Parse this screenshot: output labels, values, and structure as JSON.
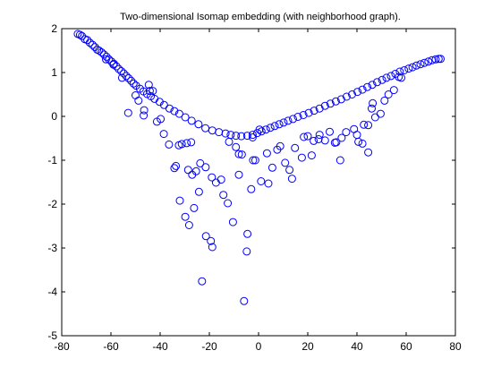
{
  "chart_data": {
    "type": "scatter",
    "title": "Two-dimensional Isomap embedding (with neighborhood graph).",
    "xlabel": "",
    "ylabel": "",
    "xlim": [
      -80,
      80
    ],
    "ylim": [
      -5,
      2
    ],
    "xticks": [
      -80,
      -60,
      -40,
      -20,
      0,
      20,
      40,
      60,
      80
    ],
    "yticks": [
      -5,
      -4,
      -3,
      -2,
      -1,
      0,
      1,
      2
    ],
    "xtick_labels": [
      "-80",
      "-60",
      "-40",
      "-20",
      "0",
      "20",
      "40",
      "60",
      "80"
    ],
    "ytick_labels": [
      "-5",
      "-4",
      "-3",
      "-2",
      "-1",
      "0",
      "1",
      "2"
    ],
    "grid": false,
    "marker": "circle-open",
    "marker_color": "#0000ff",
    "series": [
      {
        "points": [
          [
            -73.5,
            1.88
          ],
          [
            -72.6,
            1.86
          ],
          [
            -71.8,
            1.83
          ],
          [
            -70.6,
            1.76
          ],
          [
            -69.6,
            1.74
          ],
          [
            -68.6,
            1.68
          ],
          [
            -67.5,
            1.63
          ],
          [
            -66.5,
            1.58
          ],
          [
            -65.6,
            1.52
          ],
          [
            -64.8,
            1.5
          ],
          [
            -63.8,
            1.46
          ],
          [
            -62.8,
            1.41
          ],
          [
            -61.8,
            1.36
          ],
          [
            -60.8,
            1.3
          ],
          [
            -59.8,
            1.25
          ],
          [
            -58.8,
            1.2
          ],
          [
            -57.8,
            1.14
          ],
          [
            -56.8,
            1.08
          ],
          [
            -55.8,
            1.03
          ],
          [
            -54.8,
            0.98
          ],
          [
            -53.8,
            0.92
          ],
          [
            -52.8,
            0.87
          ],
          [
            -51.8,
            0.81
          ],
          [
            -50.8,
            0.75
          ],
          [
            -49.8,
            0.7
          ],
          [
            -48.2,
            0.63
          ],
          [
            -46.8,
            0.57
          ],
          [
            -45.3,
            0.51
          ],
          [
            -43.8,
            0.46
          ],
          [
            -42.3,
            0.4
          ],
          [
            -40.2,
            0.33
          ],
          [
            -38.4,
            0.26
          ],
          [
            -36.2,
            0.18
          ],
          [
            -34.2,
            0.12
          ],
          [
            -32.2,
            0.06
          ],
          [
            -29.8,
            -0.02
          ],
          [
            -27.2,
            -0.1
          ],
          [
            -24.4,
            -0.18
          ],
          [
            -21.6,
            -0.27
          ],
          [
            -18.8,
            -0.32
          ],
          [
            -16.1,
            -0.36
          ],
          [
            -13.4,
            -0.39
          ],
          [
            -11.3,
            -0.42
          ],
          [
            -9.2,
            -0.44
          ],
          [
            -7.0,
            -0.45
          ],
          [
            -4.6,
            -0.44
          ],
          [
            -2.4,
            -0.42
          ],
          [
            -0.5,
            -0.38
          ],
          [
            1.2,
            -0.34
          ],
          [
            3.0,
            -0.3
          ],
          [
            4.8,
            -0.26
          ],
          [
            6.6,
            -0.22
          ],
          [
            8.4,
            -0.18
          ],
          [
            10.2,
            -0.14
          ],
          [
            12.0,
            -0.1
          ],
          [
            14.0,
            -0.06
          ],
          [
            16.0,
            -0.01
          ],
          [
            18.2,
            0.03
          ],
          [
            20.4,
            0.08
          ],
          [
            22.6,
            0.13
          ],
          [
            24.8,
            0.18
          ],
          [
            27.0,
            0.24
          ],
          [
            29.2,
            0.29
          ],
          [
            31.4,
            0.34
          ],
          [
            33.6,
            0.39
          ],
          [
            35.8,
            0.45
          ],
          [
            38.0,
            0.5
          ],
          [
            40.2,
            0.56
          ],
          [
            42.2,
            0.61
          ],
          [
            44.2,
            0.67
          ],
          [
            46.2,
            0.72
          ],
          [
            48.2,
            0.78
          ],
          [
            50.2,
            0.83
          ],
          [
            52.0,
            0.88
          ],
          [
            53.8,
            0.92
          ],
          [
            55.6,
            0.97
          ],
          [
            57.4,
            1.02
          ],
          [
            59.2,
            1.05
          ],
          [
            61.0,
            1.09
          ],
          [
            62.6,
            1.12
          ],
          [
            64.2,
            1.16
          ],
          [
            65.8,
            1.19
          ],
          [
            67.4,
            1.22
          ],
          [
            69.0,
            1.25
          ],
          [
            70.5,
            1.28
          ],
          [
            72.0,
            1.3
          ],
          [
            73.2,
            1.31
          ],
          [
            74.0,
            1.31
          ],
          [
            -62.0,
            1.3
          ],
          [
            -59.0,
            1.18
          ],
          [
            -55.5,
            0.88
          ],
          [
            -50.0,
            0.48
          ],
          [
            -48.8,
            0.36
          ],
          [
            -46.5,
            0.14
          ],
          [
            -44.6,
            0.72
          ],
          [
            -43.0,
            0.58
          ],
          [
            -41.3,
            -0.12
          ],
          [
            -39.8,
            -0.06
          ],
          [
            -36.4,
            -0.64
          ],
          [
            -33.6,
            -1.13
          ],
          [
            -31.2,
            -0.63
          ],
          [
            -27.4,
            -0.59
          ],
          [
            -25.4,
            -1.25
          ],
          [
            -23.7,
            -1.07
          ],
          [
            -21.5,
            -1.16
          ],
          [
            -19.0,
            -1.39
          ],
          [
            -17.3,
            -1.51
          ],
          [
            -15.2,
            -1.44
          ],
          [
            -12.0,
            -0.58
          ],
          [
            -9.2,
            -0.7
          ],
          [
            -6.8,
            -0.87
          ],
          [
            -4.5,
            -2.68
          ],
          [
            -3.0,
            -1.66
          ],
          [
            -1.3,
            -1.0
          ],
          [
            1.0,
            -1.48
          ],
          [
            3.4,
            -0.84
          ],
          [
            5.6,
            -1.17
          ],
          [
            7.6,
            -0.76
          ],
          [
            10.8,
            -1.06
          ],
          [
            12.6,
            -1.22
          ],
          [
            14.8,
            -0.72
          ],
          [
            17.6,
            -0.94
          ],
          [
            20.0,
            -0.45
          ],
          [
            22.4,
            -0.56
          ],
          [
            24.8,
            -0.42
          ],
          [
            27.0,
            -0.55
          ],
          [
            28.9,
            -0.35
          ],
          [
            31.6,
            -0.59
          ],
          [
            33.8,
            -0.49
          ],
          [
            35.6,
            -0.36
          ],
          [
            38.8,
            -0.29
          ],
          [
            40.6,
            -0.58
          ],
          [
            42.8,
            -0.19
          ],
          [
            44.6,
            -0.2
          ],
          [
            47.4,
            -0.02
          ],
          [
            49.6,
            0.06
          ],
          [
            51.2,
            0.36
          ],
          [
            52.8,
            0.5
          ],
          [
            55.0,
            0.6
          ],
          [
            58.0,
            0.88
          ],
          [
            -53.0,
            0.08
          ],
          [
            -46.7,
            0.02
          ],
          [
            -44.2,
            0.58
          ],
          [
            -38.5,
            -0.4
          ],
          [
            -34.2,
            -1.18
          ],
          [
            -32.0,
            -1.92
          ],
          [
            -28.6,
            -1.22
          ],
          [
            -27.0,
            -1.33
          ],
          [
            -24.2,
            -1.72
          ],
          [
            -23.0,
            -3.76
          ],
          [
            -21.4,
            -2.73
          ],
          [
            -19.4,
            -2.84
          ],
          [
            -18.8,
            -2.98
          ],
          [
            -14.3,
            -1.79
          ],
          [
            -12.5,
            -1.98
          ],
          [
            -10.4,
            -2.41
          ],
          [
            -8.0,
            -1.33
          ],
          [
            -5.9,
            -4.21
          ],
          [
            -4.8,
            -3.08
          ],
          [
            -2.2,
            -1.0
          ],
          [
            4.0,
            -1.53
          ],
          [
            8.8,
            -0.68
          ],
          [
            13.6,
            -1.42
          ],
          [
            21.6,
            -0.89
          ],
          [
            33.2,
            -1.0
          ],
          [
            42.2,
            -0.62
          ],
          [
            44.6,
            -0.82
          ],
          [
            46.4,
            0.3
          ],
          [
            -29.8,
            -2.29
          ],
          [
            -28.2,
            -2.48
          ],
          [
            -26.2,
            -2.09
          ],
          [
            -32.4,
            -0.66
          ],
          [
            -29.2,
            -0.61
          ],
          [
            -8.0,
            -0.86
          ],
          [
            -2.4,
            -0.48
          ],
          [
            0.4,
            -0.3
          ],
          [
            18.4,
            -0.47
          ],
          [
            24.4,
            -0.52
          ],
          [
            31.0,
            -0.6
          ],
          [
            40.0,
            -0.42
          ],
          [
            46.0,
            0.18
          ],
          [
            57.0,
            0.9
          ]
        ]
      }
    ]
  }
}
